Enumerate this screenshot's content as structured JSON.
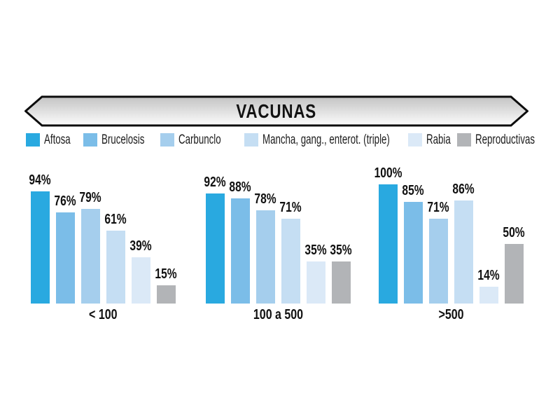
{
  "chart_data": {
    "type": "bar",
    "title": "VACUNAS",
    "categories": [
      "< 100",
      "100 a 500",
      ">500"
    ],
    "series": [
      {
        "name": "Aftosa",
        "color": "#29A9E0",
        "values": [
          94,
          92,
          100
        ]
      },
      {
        "name": "Brucelosis",
        "color": "#7BBDE8",
        "values": [
          76,
          88,
          85
        ]
      },
      {
        "name": "Carbunclo",
        "color": "#A5CEED",
        "values": [
          79,
          78,
          71
        ]
      },
      {
        "name": "Mancha, gang., enterot. (triple)",
        "color": "#C5DEF3",
        "values": [
          61,
          71,
          86
        ]
      },
      {
        "name": "Rabia",
        "color": "#DBE9F7",
        "values": [
          39,
          35,
          14
        ]
      },
      {
        "name": "Reproductivas",
        "color": "#B2B4B7",
        "values": [
          15,
          35,
          50
        ]
      }
    ],
    "value_suffix": "%",
    "ylim": [
      0,
      100
    ],
    "grid": false,
    "legend_position": "top",
    "banner_border_color": "#0d0d0d",
    "banner_gradient_top": "#c3c3c3",
    "banner_gradient_bottom": "#fcfcfc"
  }
}
